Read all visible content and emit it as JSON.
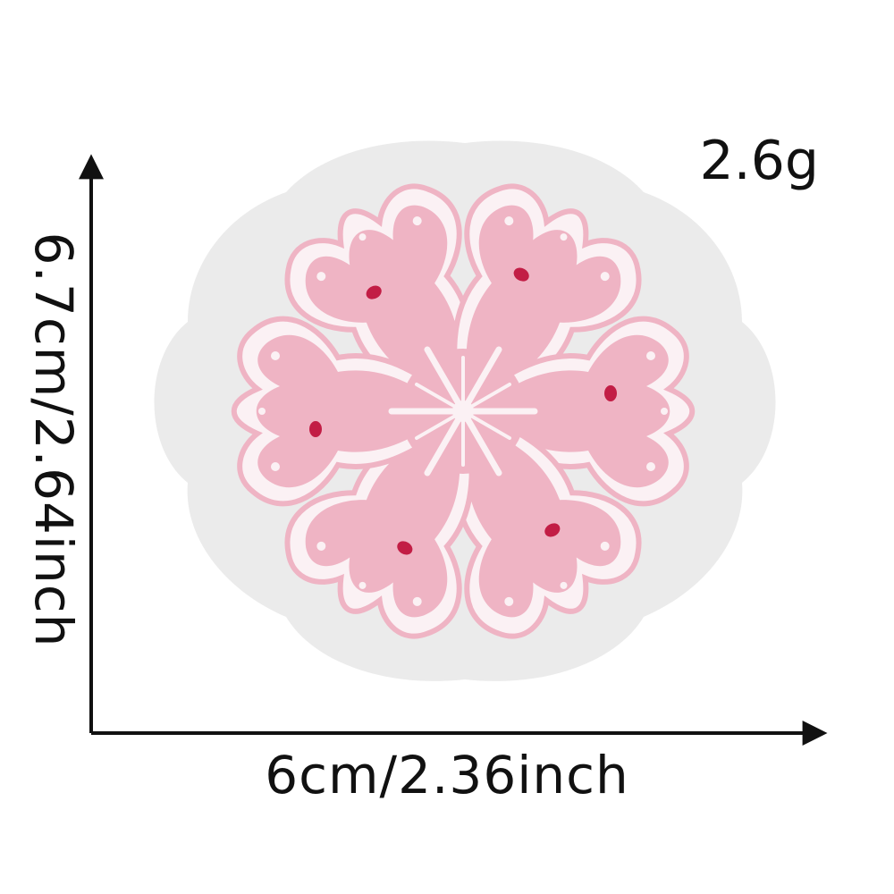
{
  "labels": {
    "weight": "2.6g",
    "width": "6cm/2.36inch",
    "height": "6.7cm/2.64inch"
  },
  "colors": {
    "felt": "#ebebeb",
    "pink": "#efb4c4",
    "pink_dark": "#e79ab0",
    "white_stitch": "#fbf1f4",
    "accent_dot": "#c21d45",
    "axis": "#111111"
  },
  "objects": {
    "patch": "snowflake-embroidered-patch"
  }
}
